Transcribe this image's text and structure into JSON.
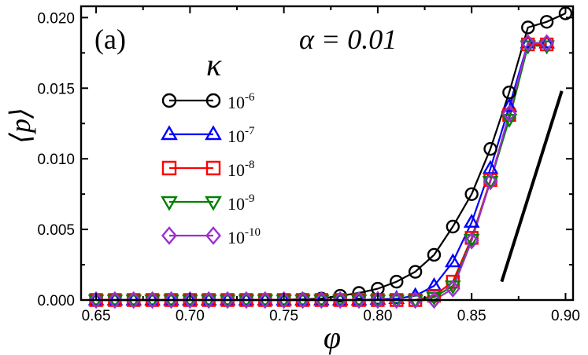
{
  "chart_data": {
    "type": "line",
    "panel_label": "(a)",
    "annotation": "α = 0.01",
    "legend_title": "κ",
    "xlabel": "φ",
    "ylabel": "⟨p⟩",
    "xlim": [
      0.642,
      0.904
    ],
    "ylim": [
      0,
      0.0208
    ],
    "x_ticks": [
      0.65,
      0.7,
      0.75,
      0.8,
      0.85,
      0.9
    ],
    "x_tick_labels": [
      "0.65",
      "0.70",
      "0.75",
      "0.80",
      "0.85",
      "0.90"
    ],
    "y_ticks": [
      0,
      0.005,
      0.01,
      0.015,
      0.02
    ],
    "y_tick_labels": [
      "0.000",
      "0.005",
      "0.010",
      "0.015",
      "0.020"
    ],
    "legend_position": "upper-left",
    "series": [
      {
        "name": "10^-6",
        "base": "10",
        "exponent": "-6",
        "color": "#000000",
        "marker": "circle",
        "x": [
          0.65,
          0.66,
          0.67,
          0.68,
          0.69,
          0.7,
          0.71,
          0.72,
          0.73,
          0.74,
          0.75,
          0.76,
          0.77,
          0.78,
          0.79,
          0.8,
          0.81,
          0.82,
          0.83,
          0.84,
          0.85,
          0.86,
          0.87,
          0.88,
          0.89,
          0.9
        ],
        "y": [
          0,
          0,
          0,
          0,
          0,
          0,
          0,
          0,
          0,
          0,
          2e-05,
          5e-05,
          0.0001,
          0.0003,
          0.0005,
          0.0008,
          0.0013,
          0.002,
          0.0032,
          0.0052,
          0.0075,
          0.0107,
          0.0147,
          0.0193,
          0.0197,
          0.0203
        ]
      },
      {
        "name": "10^-7",
        "base": "10",
        "exponent": "-7",
        "color": "#0000ff",
        "marker": "triangle-up",
        "x": [
          0.65,
          0.66,
          0.67,
          0.68,
          0.69,
          0.7,
          0.71,
          0.72,
          0.73,
          0.74,
          0.75,
          0.76,
          0.77,
          0.78,
          0.79,
          0.8,
          0.81,
          0.82,
          0.83,
          0.84,
          0.85,
          0.86,
          0.87,
          0.88,
          0.89
        ],
        "y": [
          0,
          0,
          0,
          0,
          0,
          0,
          0,
          0,
          0,
          0,
          0,
          0,
          0,
          0,
          0,
          5e-05,
          0.0001,
          0.0003,
          0.001,
          0.0027,
          0.0055,
          0.0093,
          0.0137,
          0.0182,
          0.0182
        ]
      },
      {
        "name": "10^-8",
        "base": "10",
        "exponent": "-8",
        "color": "#ff0000",
        "marker": "square",
        "x": [
          0.65,
          0.66,
          0.67,
          0.68,
          0.69,
          0.7,
          0.71,
          0.72,
          0.73,
          0.74,
          0.75,
          0.76,
          0.77,
          0.78,
          0.79,
          0.8,
          0.81,
          0.82,
          0.83,
          0.84,
          0.85,
          0.86,
          0.87,
          0.88,
          0.89
        ],
        "y": [
          0,
          0,
          0,
          0,
          0,
          0,
          0,
          0,
          0,
          0,
          0,
          0,
          0,
          0,
          0,
          0,
          0,
          0,
          0.0003,
          0.0013,
          0.0044,
          0.0085,
          0.0131,
          0.0181,
          0.0181
        ]
      },
      {
        "name": "10^-9",
        "base": "10",
        "exponent": "-9",
        "color": "#008000",
        "marker": "triangle-down",
        "x": [
          0.65,
          0.66,
          0.67,
          0.68,
          0.69,
          0.7,
          0.71,
          0.72,
          0.73,
          0.74,
          0.75,
          0.76,
          0.77,
          0.78,
          0.79,
          0.8,
          0.81,
          0.82,
          0.83,
          0.84,
          0.85,
          0.86,
          0.87,
          0.88,
          0.89
        ],
        "y": [
          0,
          0,
          0,
          0,
          0,
          0,
          0,
          0,
          0,
          0,
          0,
          0,
          0,
          0,
          0,
          0,
          0,
          0,
          0.0002,
          0.001,
          0.0043,
          0.0084,
          0.0128,
          0.018,
          0.018
        ]
      },
      {
        "name": "10^-10",
        "base": "10",
        "exponent": "-10",
        "color": "#9932cc",
        "marker": "diamond",
        "x": [
          0.65,
          0.66,
          0.67,
          0.68,
          0.69,
          0.7,
          0.71,
          0.72,
          0.73,
          0.74,
          0.75,
          0.76,
          0.77,
          0.78,
          0.79,
          0.8,
          0.81,
          0.82,
          0.83,
          0.84,
          0.85,
          0.86,
          0.87,
          0.88,
          0.89
        ],
        "y": [
          0,
          0,
          0,
          0,
          0,
          0,
          0,
          0,
          0,
          0,
          0,
          0,
          0,
          0,
          0,
          0,
          0,
          0,
          0,
          0.0008,
          0.0042,
          0.0084,
          0.0132,
          0.0182,
          0.0182
        ]
      }
    ],
    "reference_line": {
      "x": [
        0.866,
        0.898
      ],
      "y": [
        0.0013,
        0.0148
      ],
      "color": "#000000"
    }
  }
}
